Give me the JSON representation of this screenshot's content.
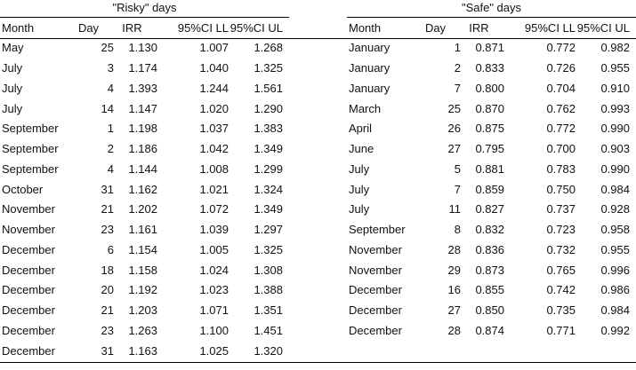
{
  "page": {
    "background_color": "#ffffff",
    "text_color": "#111111",
    "rule_color": "#000000"
  },
  "tables": [
    {
      "title": "\"Risky\" days",
      "columns": [
        "Month",
        "Day",
        "IRR",
        "95%CI LL",
        "95%CI UL"
      ],
      "rows": [
        [
          "May",
          "25",
          "1.130",
          "1.007",
          "1.268"
        ],
        [
          "July",
          "3",
          "1.174",
          "1.040",
          "1.325"
        ],
        [
          "July",
          "4",
          "1.393",
          "1.244",
          "1.561"
        ],
        [
          "July",
          "14",
          "1.147",
          "1.020",
          "1.290"
        ],
        [
          "September",
          "1",
          "1.198",
          "1.037",
          "1.383"
        ],
        [
          "September",
          "2",
          "1.186",
          "1.042",
          "1.349"
        ],
        [
          "September",
          "4",
          "1.144",
          "1.008",
          "1.299"
        ],
        [
          "October",
          "31",
          "1.162",
          "1.021",
          "1.324"
        ],
        [
          "November",
          "21",
          "1.202",
          "1.072",
          "1.349"
        ],
        [
          "November",
          "23",
          "1.161",
          "1.039",
          "1.297"
        ],
        [
          "December",
          "6",
          "1.154",
          "1.005",
          "1.325"
        ],
        [
          "December",
          "18",
          "1.158",
          "1.024",
          "1.308"
        ],
        [
          "December",
          "20",
          "1.192",
          "1.023",
          "1.388"
        ],
        [
          "December",
          "21",
          "1.203",
          "1.071",
          "1.351"
        ],
        [
          "December",
          "23",
          "1.263",
          "1.100",
          "1.451"
        ],
        [
          "December",
          "31",
          "1.163",
          "1.025",
          "1.320"
        ]
      ]
    },
    {
      "title": "\"Safe\" days",
      "columns": [
        "Month",
        "Day",
        "IRR",
        "95%CI LL",
        "95%CI UL"
      ],
      "rows": [
        [
          "January",
          "1",
          "0.871",
          "0.772",
          "0.982"
        ],
        [
          "January",
          "2",
          "0.833",
          "0.726",
          "0.955"
        ],
        [
          "January",
          "7",
          "0.800",
          "0.704",
          "0.910"
        ],
        [
          "March",
          "25",
          "0.870",
          "0.762",
          "0.993"
        ],
        [
          "April",
          "26",
          "0.875",
          "0.772",
          "0.990"
        ],
        [
          "June",
          "27",
          "0.795",
          "0.700",
          "0.903"
        ],
        [
          "July",
          "5",
          "0.881",
          "0.783",
          "0.990"
        ],
        [
          "July",
          "7",
          "0.859",
          "0.750",
          "0.984"
        ],
        [
          "July",
          "11",
          "0.827",
          "0.737",
          "0.928"
        ],
        [
          "September",
          "8",
          "0.832",
          "0.723",
          "0.958"
        ],
        [
          "November",
          "28",
          "0.836",
          "0.732",
          "0.955"
        ],
        [
          "November",
          "29",
          "0.873",
          "0.765",
          "0.996"
        ],
        [
          "December",
          "16",
          "0.855",
          "0.742",
          "0.986"
        ],
        [
          "December",
          "27",
          "0.850",
          "0.735",
          "0.984"
        ],
        [
          "December",
          "28",
          "0.874",
          "0.771",
          "0.992"
        ]
      ]
    }
  ]
}
